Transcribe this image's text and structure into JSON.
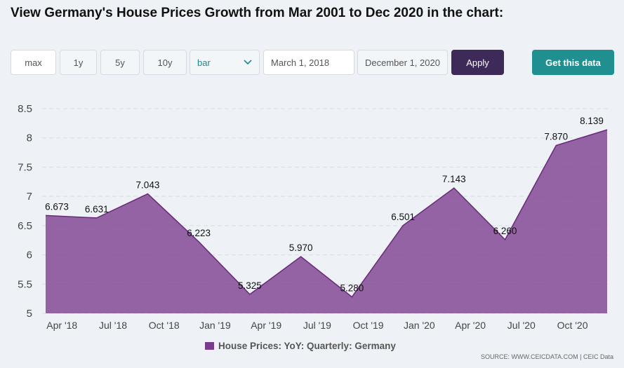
{
  "header": {
    "title": "View Germany's House Prices Growth from Mar 2001 to Dec 2020 in the chart:"
  },
  "controls": {
    "ranges": [
      "max",
      "1y",
      "5y",
      "10y"
    ],
    "chart_type": "bar",
    "start_date": "March 1, 2018",
    "end_date": "December 1, 2020",
    "apply": "Apply",
    "get_data": "Get this data"
  },
  "chart_data": {
    "type": "area",
    "categories": [
      "Apr '18",
      "Jul '18",
      "Oct '18",
      "Jan '19",
      "Apr '19",
      "Jul '19",
      "Oct '19",
      "Jan '20",
      "Apr '20",
      "Jul '20",
      "Oct '20",
      null
    ],
    "series": [
      {
        "name": "House Prices: YoY: Quarterly: Germany",
        "color": "#7b3b8c",
        "values": [
          6.673,
          6.631,
          7.043,
          6.223,
          5.325,
          5.97,
          5.28,
          6.501,
          7.143,
          6.26,
          7.87,
          8.139
        ],
        "value_labels": [
          "6.673",
          "6.631",
          "7.043",
          "6.223",
          "5.325",
          "5.970",
          "5.280",
          "6.501",
          "7.143",
          "6.260",
          "7.870",
          "8.139"
        ]
      }
    ],
    "ylim": [
      5,
      8.5
    ],
    "yticks": [
      5,
      5.5,
      6,
      6.5,
      7,
      7.5,
      8,
      8.5
    ],
    "grid": true,
    "legend": "bottom",
    "source": "SOURCE: WWW.CEICDATA.COM | CEIC Data"
  }
}
